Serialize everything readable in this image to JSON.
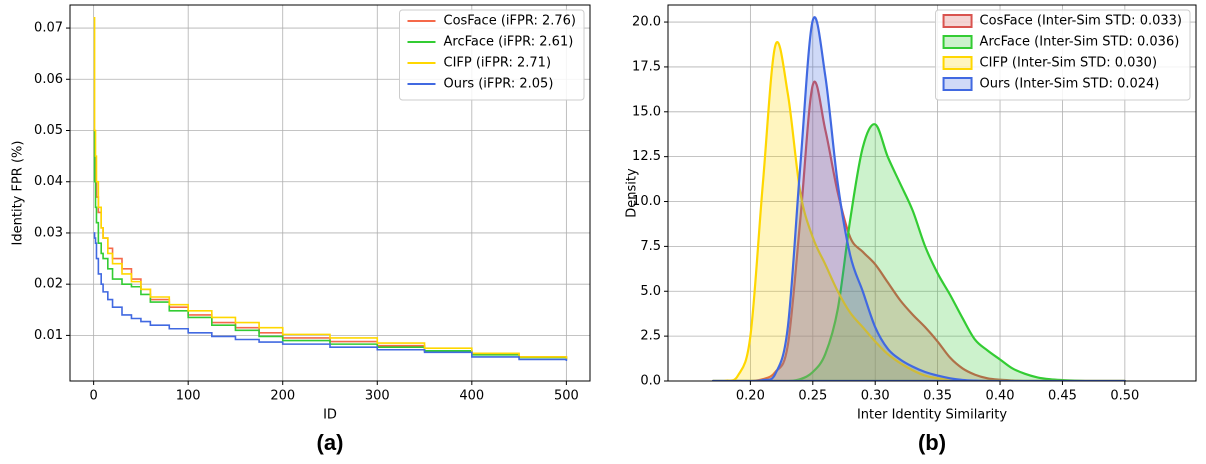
{
  "chart_data": [
    {
      "type": "line",
      "step": true,
      "caption": "(a)",
      "xlabel": "ID",
      "ylabel": "Identity FPR (%)",
      "x": [
        0,
        1,
        2,
        3,
        5,
        8,
        10,
        15,
        20,
        30,
        40,
        50,
        60,
        80,
        100,
        125,
        150,
        175,
        200,
        250,
        300,
        350,
        400,
        450,
        500
      ],
      "series": [
        {
          "name": "CosFace (iFPR: 2.76)",
          "color": "#f5694a",
          "values": [
            0.05,
            0.045,
            0.04,
            0.037,
            0.034,
            0.031,
            0.029,
            0.027,
            0.025,
            0.023,
            0.021,
            0.019,
            0.017,
            0.0155,
            0.014,
            0.0125,
            0.0115,
            0.0105,
            0.0095,
            0.0088,
            0.008,
            0.007,
            0.0063,
            0.0058,
            0.0054
          ]
        },
        {
          "name": "ArcFace (iFPR: 2.61)",
          "color": "#33cc33",
          "values": [
            0.05,
            0.04,
            0.035,
            0.032,
            0.028,
            0.026,
            0.025,
            0.023,
            0.021,
            0.02,
            0.0195,
            0.018,
            0.0165,
            0.0148,
            0.0135,
            0.012,
            0.011,
            0.0098,
            0.009,
            0.0083,
            0.0077,
            0.007,
            0.0062,
            0.0057,
            0.0053
          ]
        },
        {
          "name": "CIFP (iFPR: 2.71)",
          "color": "#ffd700",
          "values": [
            0.072,
            0.05,
            0.045,
            0.04,
            0.035,
            0.031,
            0.029,
            0.026,
            0.024,
            0.022,
            0.0205,
            0.019,
            0.0175,
            0.016,
            0.0148,
            0.0135,
            0.0125,
            0.0115,
            0.0102,
            0.0095,
            0.0085,
            0.0075,
            0.0065,
            0.0058,
            0.0052
          ]
        },
        {
          "name": "Ours (iFPR: 2.05)",
          "color": "#4169e1",
          "values": [
            0.03,
            0.029,
            0.028,
            0.025,
            0.022,
            0.02,
            0.0185,
            0.017,
            0.0155,
            0.014,
            0.0133,
            0.0127,
            0.012,
            0.0113,
            0.0105,
            0.0098,
            0.0092,
            0.0087,
            0.0083,
            0.0077,
            0.0072,
            0.0067,
            0.0058,
            0.0053,
            0.005
          ]
        }
      ],
      "xlim": [
        -25,
        525
      ],
      "xticks": [
        0,
        100,
        200,
        300,
        400,
        500
      ],
      "ylim": [
        0.0011,
        0.0745
      ],
      "yticks": [
        0.01,
        0.02,
        0.03,
        0.04,
        0.05,
        0.06,
        0.07
      ],
      "grid": true,
      "legend": "upper right"
    },
    {
      "type": "area",
      "caption": "(b)",
      "xlabel": "Inter Identity Similarity",
      "ylabel": "Density",
      "x": [
        0.17,
        0.18,
        0.19,
        0.2,
        0.21,
        0.22,
        0.23,
        0.24,
        0.25,
        0.26,
        0.27,
        0.28,
        0.29,
        0.3,
        0.31,
        0.32,
        0.33,
        0.34,
        0.35,
        0.36,
        0.37,
        0.38,
        0.39,
        0.4,
        0.41,
        0.42,
        0.43,
        0.44,
        0.45,
        0.46,
        0.47,
        0.48,
        0.49,
        0.5
      ],
      "series": [
        {
          "name": "CosFace (Inter-Sim STD: 0.033)",
          "color": "#d9534f",
          "values": [
            0,
            0,
            0,
            0,
            0.1,
            0.5,
            2,
            9,
            16.5,
            14,
            10.5,
            8,
            7.2,
            6.5,
            5.5,
            4.5,
            3.7,
            3,
            2.2,
            1.3,
            0.7,
            0.35,
            0.15,
            0.07,
            0.03,
            0,
            0,
            0,
            0,
            0,
            0,
            0,
            0,
            0
          ]
        },
        {
          "name": "ArcFace (Inter-Sim STD: 0.036)",
          "color": "#33cc33",
          "values": [
            0,
            0,
            0,
            0,
            0,
            0,
            0,
            0.1,
            0.5,
            1.5,
            4,
            9,
            13,
            14.3,
            12.5,
            11,
            9.5,
            7.5,
            6,
            4.8,
            3.5,
            2.3,
            1.7,
            1.2,
            0.7,
            0.4,
            0.2,
            0.1,
            0.05,
            0.02,
            0,
            0,
            0,
            0
          ]
        },
        {
          "name": "CIFP (Inter-Sim STD: 0.030)",
          "color": "#ffd700",
          "values": [
            0,
            0.02,
            0.3,
            2.5,
            11,
            18.7,
            16,
            10.5,
            8,
            6.5,
            5,
            3.8,
            3,
            2.2,
            1.5,
            1,
            0.6,
            0.3,
            0.15,
            0.06,
            0.02,
            0,
            0,
            0,
            0,
            0,
            0,
            0,
            0,
            0,
            0,
            0,
            0,
            0
          ]
        },
        {
          "name": "Ours (Inter-Sim STD: 0.024)",
          "color": "#4169e1",
          "values": [
            0,
            0,
            0,
            0,
            0.05,
            0.4,
            3,
            12,
            20.1,
            17,
            11,
            7,
            5,
            3,
            1.8,
            1.2,
            0.8,
            0.5,
            0.3,
            0.15,
            0.06,
            0.02,
            0,
            0,
            0,
            0,
            0,
            0,
            0,
            0,
            0,
            0,
            0,
            0
          ]
        }
      ],
      "xlim": [
        0.134,
        0.557
      ],
      "xticks": [
        {
          "value": 0.2,
          "label": "0.20"
        },
        0.25,
        {
          "value": 0.3,
          "label": "0.30"
        },
        0.35,
        {
          "value": 0.4,
          "label": "0.40"
        },
        0.45,
        {
          "value": 0.5,
          "label": "0.50"
        }
      ],
      "ylim": [
        0,
        20.95
      ],
      "yticks": [
        {
          "value": 0,
          "label": "0.0"
        },
        2.5,
        {
          "value": 5,
          "label": "5.0"
        },
        7.5,
        {
          "value": 10,
          "label": "10.0"
        },
        12.5,
        {
          "value": 15,
          "label": "15.0"
        },
        17.5,
        {
          "value": 20,
          "label": "20.0"
        }
      ],
      "grid": true,
      "legend": "upper right"
    }
  ]
}
